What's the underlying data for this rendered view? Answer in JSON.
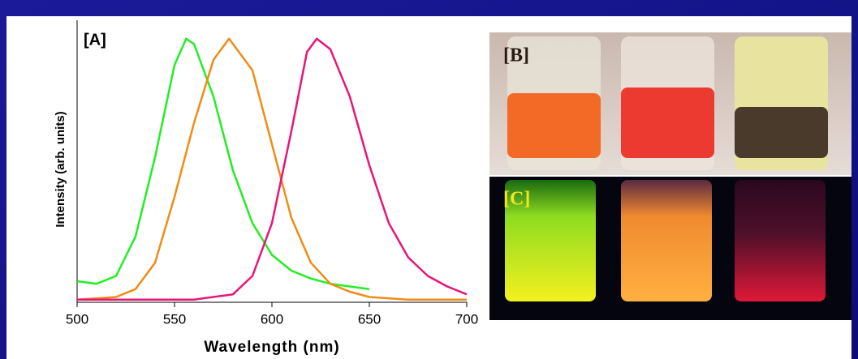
{
  "chart_data": {
    "type": "line",
    "xlabel": "Wavelength (nm)",
    "ylabel": "Intensity (arb. units)",
    "annotation": "[A]",
    "xlim": [
      500,
      700
    ],
    "xticks": [
      500,
      550,
      600,
      650,
      700
    ],
    "ylim": [
      0,
      1.07
    ],
    "series": [
      {
        "color": "#22ee22",
        "x": [
          500,
          510,
          520,
          530,
          540,
          550,
          556,
          560,
          570,
          580,
          590,
          600,
          610,
          620,
          630,
          640,
          650
        ],
        "values": [
          0.08,
          0.07,
          0.1,
          0.25,
          0.55,
          0.9,
          1.0,
          0.98,
          0.78,
          0.5,
          0.3,
          0.18,
          0.12,
          0.09,
          0.07,
          0.06,
          0.05
        ]
      },
      {
        "color": "#f08c14",
        "x": [
          500,
          520,
          530,
          540,
          550,
          560,
          570,
          578,
          590,
          600,
          610,
          620,
          630,
          640,
          650,
          670,
          700
        ],
        "values": [
          0.01,
          0.02,
          0.05,
          0.15,
          0.4,
          0.68,
          0.92,
          1.0,
          0.88,
          0.6,
          0.32,
          0.15,
          0.07,
          0.04,
          0.02,
          0.01,
          0.01
        ]
      },
      {
        "color": "#e8147a",
        "x": [
          500,
          560,
          580,
          590,
          600,
          610,
          618,
          623,
          630,
          640,
          650,
          660,
          670,
          680,
          690,
          700
        ],
        "values": [
          0.01,
          0.01,
          0.03,
          0.1,
          0.3,
          0.65,
          0.95,
          1.0,
          0.96,
          0.78,
          0.52,
          0.3,
          0.17,
          0.1,
          0.06,
          0.03
        ]
      }
    ]
  },
  "photos": [
    {
      "label": "[B]"
    },
    {
      "label": "[C]"
    }
  ]
}
